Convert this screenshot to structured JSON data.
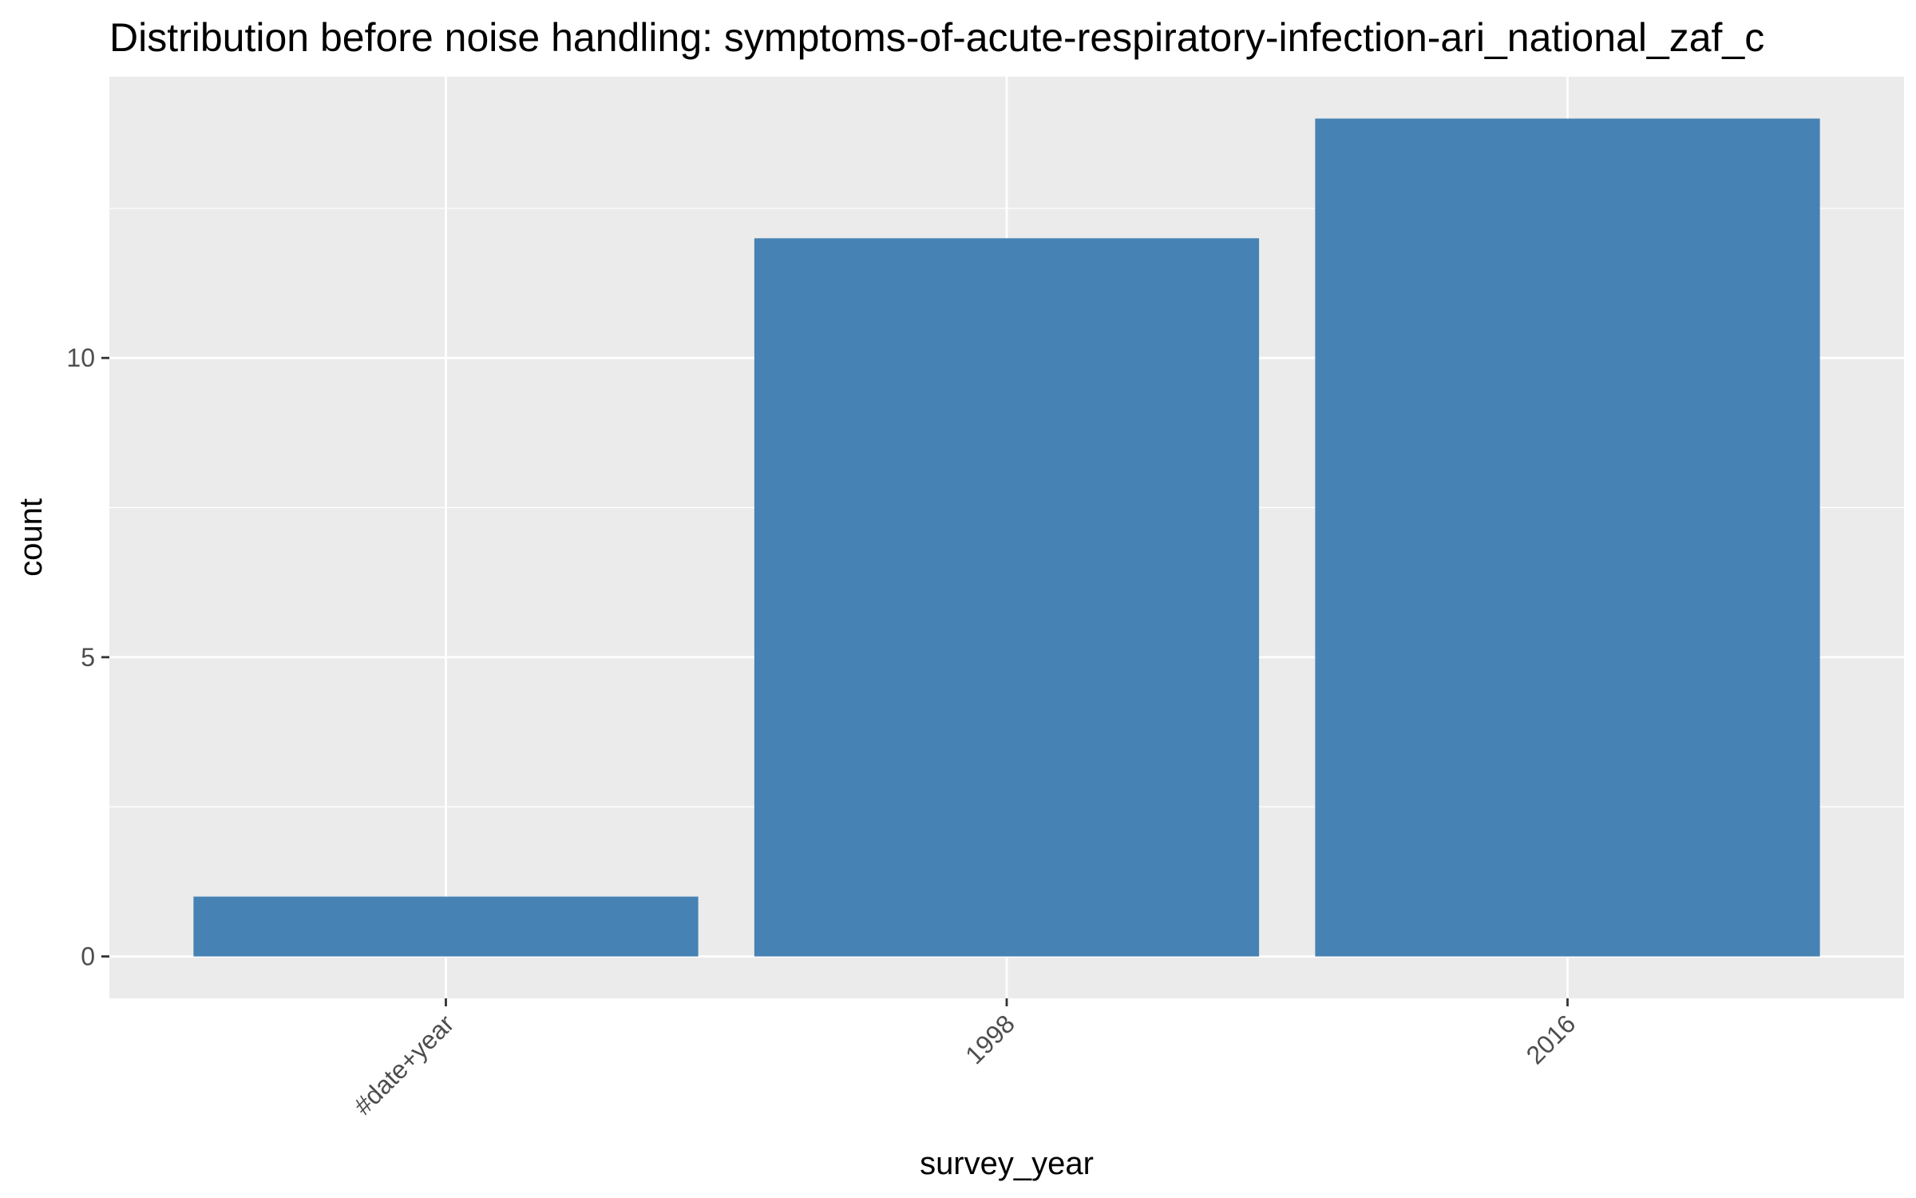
{
  "chart_data": {
    "type": "bar",
    "title": "Distribution before noise handling: symptoms-of-acute-respiratory-infection-ari_national_zaf_c",
    "xlabel": "survey_year",
    "ylabel": "count",
    "categories": [
      "#date+year",
      "1998",
      "2016"
    ],
    "values": [
      1,
      12,
      14
    ],
    "ylim": [
      -0.7,
      14.7
    ],
    "yticks": [
      0,
      5,
      10
    ],
    "grid": true,
    "colors": {
      "bar": "#4682b4",
      "panel_background": "#ebebeb",
      "grid": "#ffffff"
    }
  }
}
